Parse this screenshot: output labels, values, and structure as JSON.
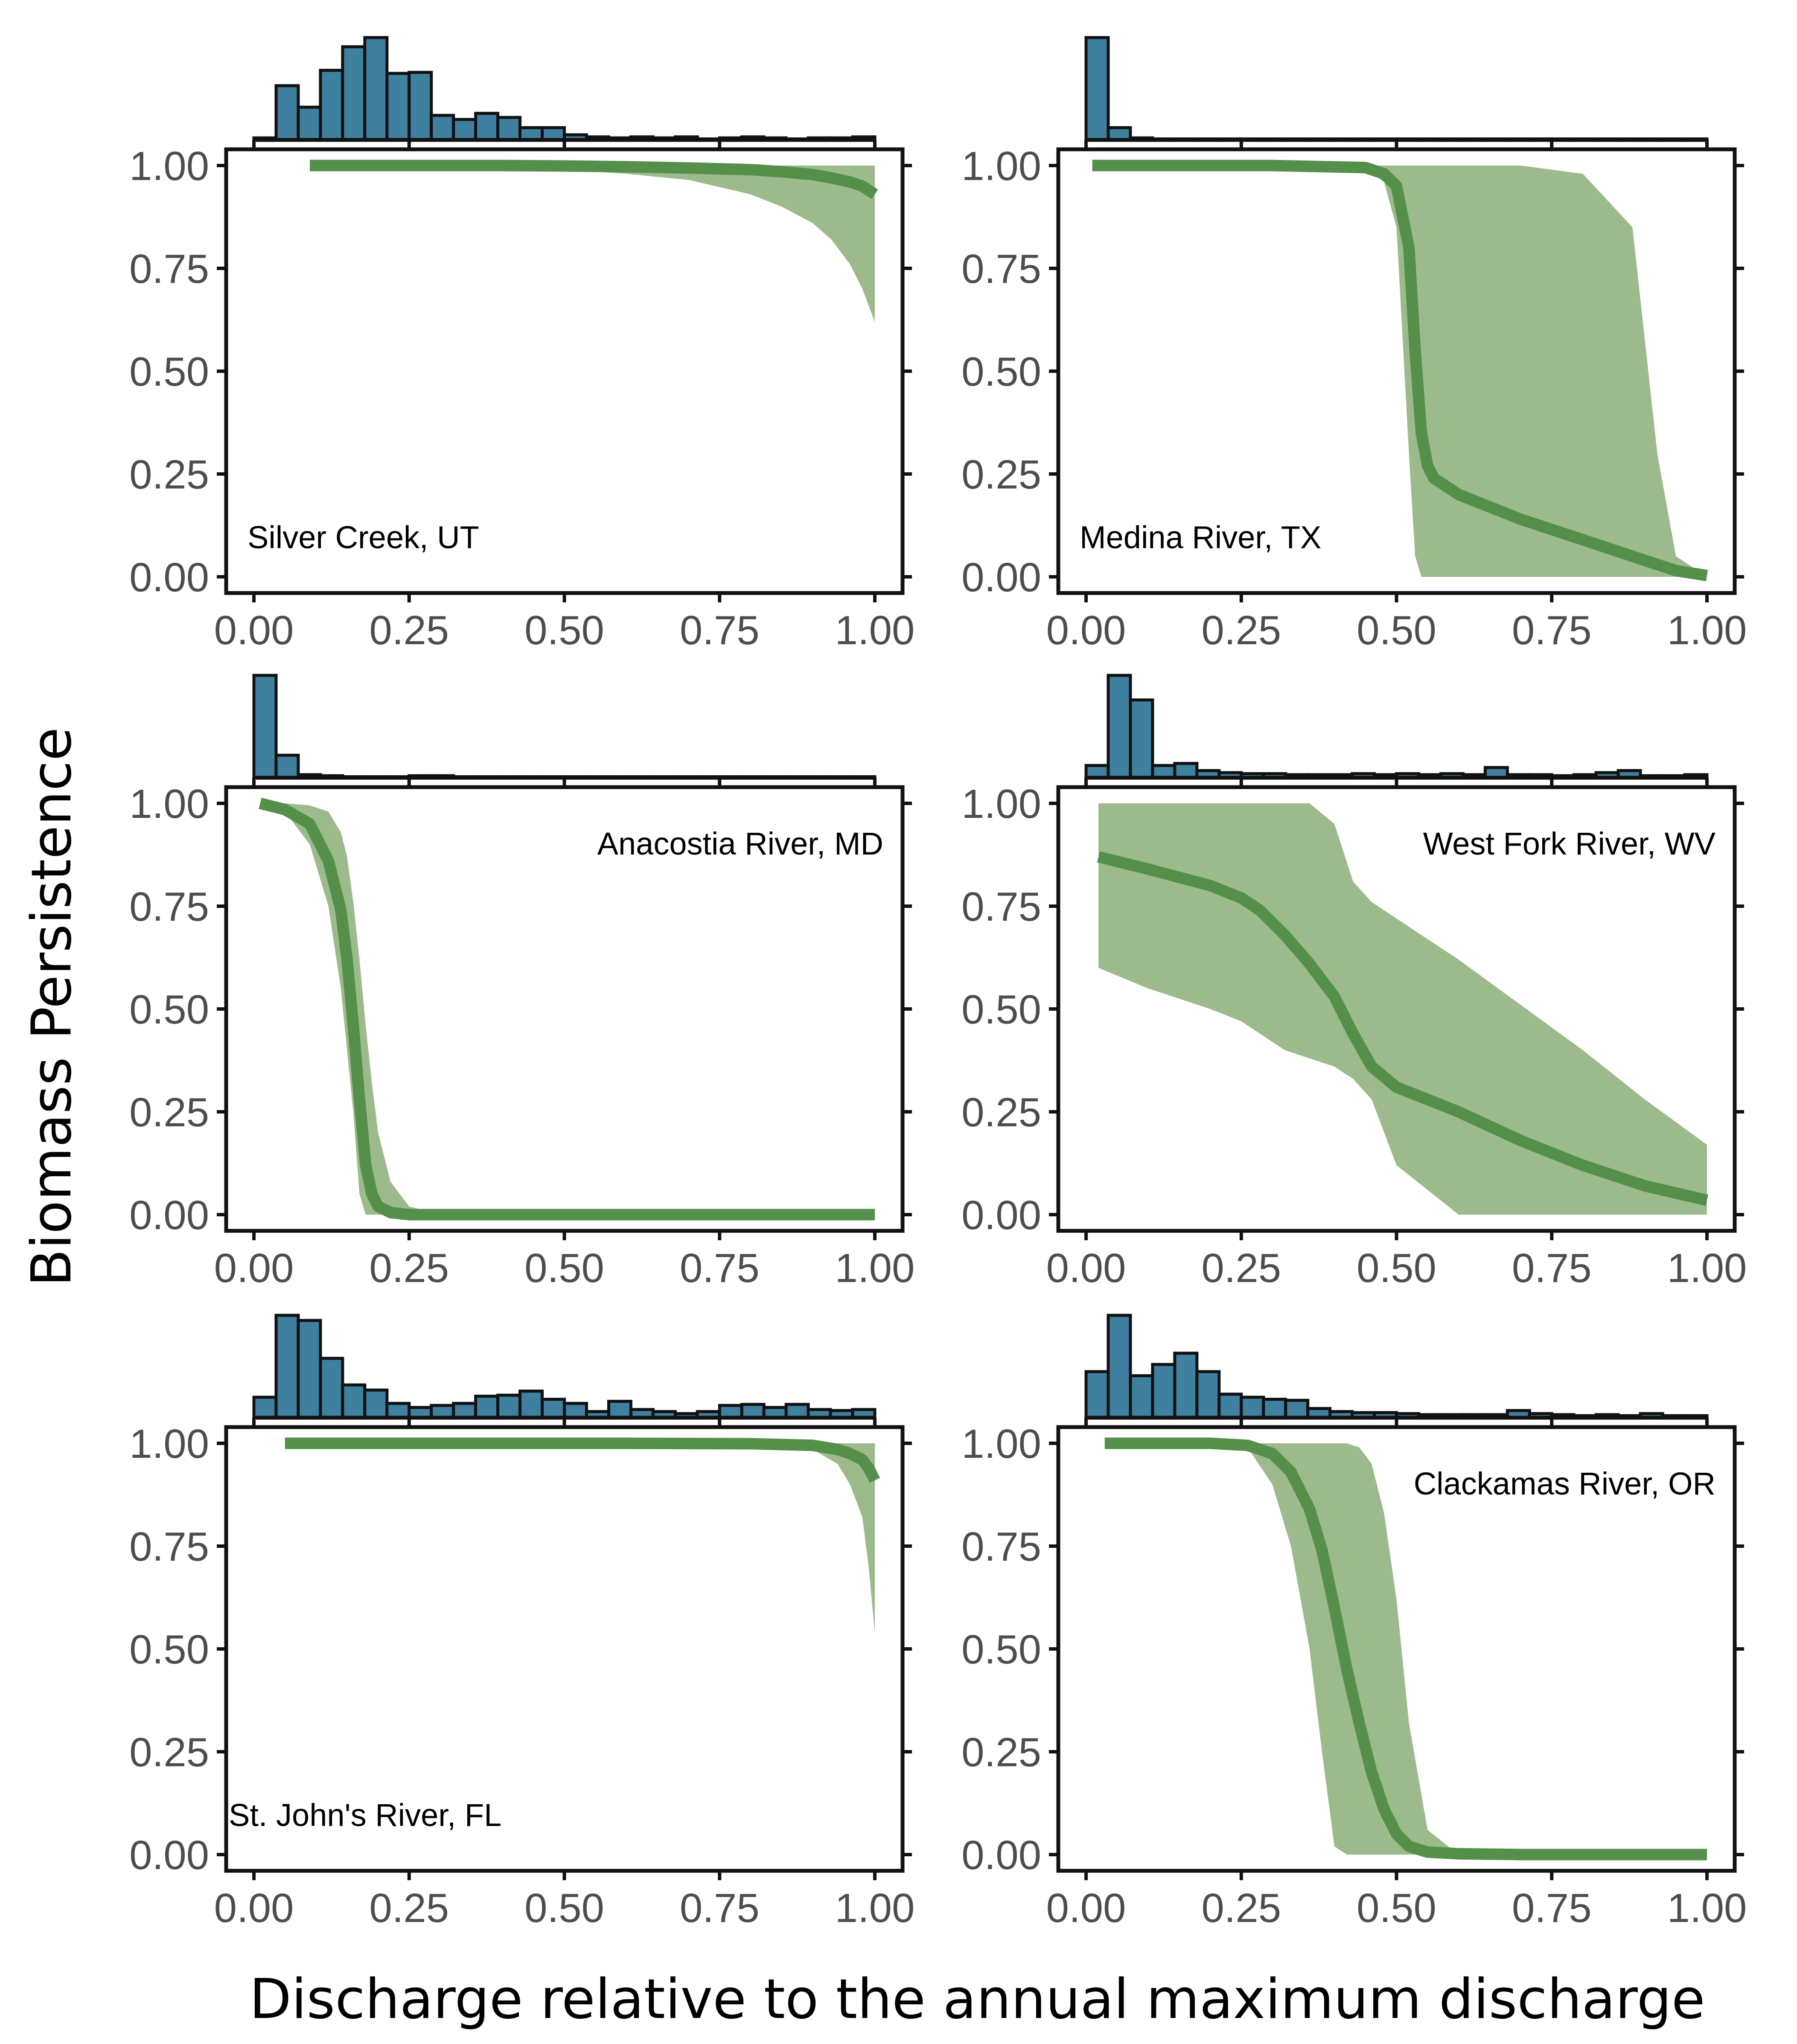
{
  "figure": {
    "ylabel": "Biomass Persistence",
    "xlabel": "Discharge relative to the annual maximum discharge",
    "colors": {
      "histogram_fill": "#3f7f9f",
      "histogram_stroke": "#111111",
      "line": "#54904a",
      "band": "#9cba8c",
      "axis": "#111111"
    }
  },
  "chart_data": [
    {
      "type": "line",
      "title": "Silver Creek, UT",
      "label_position": "bottom-left",
      "xlim": [
        0,
        1
      ],
      "ylim": [
        0,
        1
      ],
      "x_ticks": [
        "0.00",
        "0.25",
        "0.50",
        "0.75",
        "1.00"
      ],
      "y_ticks": [
        "0.00",
        "0.25",
        "0.50",
        "0.75",
        "1.00"
      ],
      "histogram": [
        0.02,
        0.53,
        0.32,
        0.68,
        0.91,
        1.0,
        0.65,
        0.66,
        0.24,
        0.2,
        0.26,
        0.22,
        0.12,
        0.12,
        0.05,
        0.03,
        0.02,
        0.03,
        0.02,
        0.03,
        0.01,
        0.02,
        0.03,
        0.02,
        0.01,
        0.02,
        0.02,
        0.03
      ],
      "series": [
        {
          "name": "persistence",
          "x": [
            0.09,
            0.2,
            0.3,
            0.4,
            0.5,
            0.6,
            0.7,
            0.8,
            0.85,
            0.9,
            0.93,
            0.96,
            0.98,
            1.0
          ],
          "y": [
            1.0,
            1.0,
            1.0,
            1.0,
            0.999,
            0.997,
            0.994,
            0.99,
            0.985,
            0.978,
            0.97,
            0.96,
            0.95,
            0.93
          ],
          "lower": [
            1.0,
            1.0,
            0.998,
            0.995,
            0.99,
            0.98,
            0.965,
            0.93,
            0.9,
            0.86,
            0.82,
            0.76,
            0.7,
            0.62
          ],
          "upper": [
            1.0,
            1.0,
            1.0,
            1.0,
            1.0,
            1.0,
            1.0,
            1.0,
            1.0,
            1.0,
            1.0,
            1.0,
            1.0,
            1.0
          ]
        }
      ]
    },
    {
      "type": "line",
      "title": "Medina River, TX",
      "label_position": "bottom-left",
      "xlim": [
        0,
        1
      ],
      "ylim": [
        0,
        1
      ],
      "x_ticks": [
        "0.00",
        "0.25",
        "0.50",
        "0.75",
        "1.00"
      ],
      "y_ticks": [
        "0.00",
        "0.25",
        "0.50",
        "0.75",
        "1.00"
      ],
      "histogram": [
        1.0,
        0.12,
        0.02,
        0.01,
        0.01,
        0.01,
        0.01,
        0.01,
        0.01,
        0.01,
        0.01,
        0.01,
        0.01,
        0.01,
        0.01,
        0.01,
        0.01,
        0.01,
        0.01,
        0.01,
        0.01,
        0.01,
        0.01,
        0.01,
        0.01,
        0.01,
        0.01,
        0.01
      ],
      "series": [
        {
          "name": "persistence",
          "x": [
            0.01,
            0.3,
            0.45,
            0.48,
            0.5,
            0.52,
            0.53,
            0.54,
            0.55,
            0.56,
            0.6,
            0.7,
            0.8,
            0.88,
            0.92,
            0.95,
            1.0
          ],
          "y": [
            1.0,
            1.0,
            0.995,
            0.98,
            0.95,
            0.8,
            0.55,
            0.35,
            0.27,
            0.24,
            0.2,
            0.14,
            0.09,
            0.05,
            0.03,
            0.015,
            0.003
          ],
          "lower": [
            1.0,
            1.0,
            0.99,
            0.96,
            0.85,
            0.3,
            0.05,
            0.0,
            0.0,
            0.0,
            0.0,
            0.0,
            0.0,
            0.0,
            0.0,
            0.0,
            0.0
          ],
          "upper": [
            1.0,
            1.0,
            1.0,
            1.0,
            1.0,
            1.0,
            1.0,
            1.0,
            1.0,
            1.0,
            1.0,
            1.0,
            0.98,
            0.85,
            0.3,
            0.05,
            0.0
          ]
        }
      ]
    },
    {
      "type": "line",
      "title": "Anacostia River, MD",
      "label_position": "top-right",
      "xlim": [
        0,
        1
      ],
      "ylim": [
        0,
        1
      ],
      "x_ticks": [
        "0.00",
        "0.25",
        "0.50",
        "0.75",
        "1.00"
      ],
      "y_ticks": [
        "0.00",
        "0.25",
        "0.50",
        "0.75",
        "1.00"
      ],
      "histogram": [
        1.0,
        0.22,
        0.03,
        0.02,
        0.01,
        0.01,
        0.01,
        0.02,
        0.02,
        0.01,
        0.01,
        0.01,
        0.01,
        0.01,
        0.01,
        0.01,
        0.01,
        0.01,
        0.01,
        0.01,
        0.01,
        0.01,
        0.01,
        0.01,
        0.01,
        0.01,
        0.01,
        0.01
      ],
      "series": [
        {
          "name": "persistence",
          "x": [
            0.01,
            0.05,
            0.09,
            0.12,
            0.14,
            0.15,
            0.16,
            0.17,
            0.18,
            0.19,
            0.2,
            0.22,
            0.25,
            0.3,
            0.5,
            1.0
          ],
          "y": [
            1.0,
            0.985,
            0.95,
            0.86,
            0.74,
            0.62,
            0.46,
            0.28,
            0.12,
            0.05,
            0.02,
            0.005,
            0.0,
            0.0,
            0.0,
            0.0
          ],
          "lower": [
            1.0,
            0.98,
            0.9,
            0.75,
            0.55,
            0.4,
            0.25,
            0.05,
            0.0,
            0.0,
            0.0,
            0.0,
            0.0,
            0.0,
            0.0,
            0.0
          ],
          "upper": [
            1.0,
            1.0,
            0.995,
            0.98,
            0.93,
            0.87,
            0.76,
            0.62,
            0.46,
            0.32,
            0.2,
            0.08,
            0.02,
            0.0,
            0.0,
            0.0
          ]
        }
      ]
    },
    {
      "type": "line",
      "title": "West Fork River, WV",
      "label_position": "top-right",
      "xlim": [
        0,
        1
      ],
      "ylim": [
        0,
        1
      ],
      "x_ticks": [
        "0.00",
        "0.25",
        "0.50",
        "0.75",
        "1.00"
      ],
      "y_ticks": [
        "0.00",
        "0.25",
        "0.50",
        "0.75",
        "1.00"
      ],
      "histogram": [
        0.12,
        1.0,
        0.76,
        0.12,
        0.14,
        0.07,
        0.05,
        0.04,
        0.04,
        0.03,
        0.03,
        0.03,
        0.04,
        0.03,
        0.04,
        0.03,
        0.04,
        0.03,
        0.1,
        0.03,
        0.03,
        0.02,
        0.03,
        0.05,
        0.07,
        0.02,
        0.02,
        0.03
      ],
      "series": [
        {
          "name": "persistence",
          "x": [
            0.02,
            0.1,
            0.2,
            0.25,
            0.28,
            0.32,
            0.36,
            0.4,
            0.43,
            0.46,
            0.5,
            0.6,
            0.7,
            0.8,
            0.9,
            1.0
          ],
          "y": [
            0.87,
            0.84,
            0.8,
            0.77,
            0.74,
            0.68,
            0.61,
            0.53,
            0.44,
            0.36,
            0.31,
            0.25,
            0.18,
            0.12,
            0.07,
            0.035
          ],
          "lower": [
            0.6,
            0.55,
            0.5,
            0.47,
            0.44,
            0.4,
            0.38,
            0.36,
            0.33,
            0.28,
            0.12,
            0.0,
            0.0,
            0.0,
            0.0,
            0.0
          ],
          "upper": [
            1.0,
            1.0,
            1.0,
            1.0,
            1.0,
            1.0,
            1.0,
            0.95,
            0.81,
            0.76,
            0.72,
            0.62,
            0.51,
            0.4,
            0.28,
            0.17
          ]
        }
      ]
    },
    {
      "type": "line",
      "title": "St. John's River, FL",
      "label_position": "bottom-left",
      "xlim": [
        0,
        1
      ],
      "ylim": [
        0,
        1
      ],
      "x_ticks": [
        "0.00",
        "0.25",
        "0.50",
        "0.75",
        "1.00"
      ],
      "y_ticks": [
        "0.00",
        "0.25",
        "0.50",
        "0.75",
        "1.00"
      ],
      "histogram": [
        0.2,
        1.0,
        0.95,
        0.58,
        0.32,
        0.27,
        0.14,
        0.1,
        0.12,
        0.14,
        0.21,
        0.22,
        0.26,
        0.18,
        0.14,
        0.06,
        0.16,
        0.08,
        0.06,
        0.04,
        0.06,
        0.12,
        0.13,
        0.1,
        0.13,
        0.08,
        0.07,
        0.08
      ],
      "series": [
        {
          "name": "persistence",
          "x": [
            0.05,
            0.2,
            0.4,
            0.6,
            0.8,
            0.9,
            0.94,
            0.96,
            0.98,
            0.99,
            1.0
          ],
          "y": [
            1.0,
            1.0,
            1.0,
            1.0,
            0.999,
            0.995,
            0.985,
            0.975,
            0.96,
            0.94,
            0.91
          ],
          "lower": [
            1.0,
            1.0,
            1.0,
            1.0,
            0.998,
            0.985,
            0.95,
            0.9,
            0.82,
            0.7,
            0.54
          ],
          "upper": [
            1.0,
            1.0,
            1.0,
            1.0,
            1.0,
            1.0,
            1.0,
            1.0,
            1.0,
            1.0,
            1.0
          ]
        }
      ]
    },
    {
      "type": "line",
      "title": "Clackamas River, OR",
      "label_position": "top-right",
      "xlim": [
        0,
        1
      ],
      "ylim": [
        0,
        1
      ],
      "x_ticks": [
        "0.00",
        "0.25",
        "0.50",
        "0.75",
        "1.00"
      ],
      "y_ticks": [
        "0.00",
        "0.25",
        "0.50",
        "0.75",
        "1.00"
      ],
      "histogram": [
        0.45,
        1.0,
        0.41,
        0.52,
        0.63,
        0.45,
        0.23,
        0.2,
        0.18,
        0.17,
        0.09,
        0.06,
        0.05,
        0.05,
        0.04,
        0.03,
        0.03,
        0.03,
        0.03,
        0.07,
        0.04,
        0.03,
        0.02,
        0.03,
        0.02,
        0.04,
        0.02,
        0.02
      ],
      "series": [
        {
          "name": "persistence",
          "x": [
            0.03,
            0.2,
            0.26,
            0.3,
            0.33,
            0.36,
            0.38,
            0.4,
            0.42,
            0.44,
            0.46,
            0.48,
            0.5,
            0.52,
            0.55,
            0.6,
            0.7,
            1.0
          ],
          "y": [
            1.0,
            1.0,
            0.995,
            0.975,
            0.93,
            0.84,
            0.74,
            0.6,
            0.45,
            0.32,
            0.2,
            0.11,
            0.05,
            0.02,
            0.006,
            0.002,
            0.0,
            0.0
          ],
          "lower": [
            1.0,
            1.0,
            0.99,
            0.9,
            0.75,
            0.5,
            0.25,
            0.02,
            0.0,
            0.0,
            0.0,
            0.0,
            0.0,
            0.0,
            0.0,
            0.0,
            0.0,
            0.0
          ],
          "upper": [
            1.0,
            1.0,
            1.0,
            1.0,
            1.0,
            1.0,
            1.0,
            1.0,
            1.0,
            0.99,
            0.95,
            0.83,
            0.62,
            0.32,
            0.06,
            0.0,
            0.0,
            0.0
          ]
        }
      ]
    }
  ]
}
